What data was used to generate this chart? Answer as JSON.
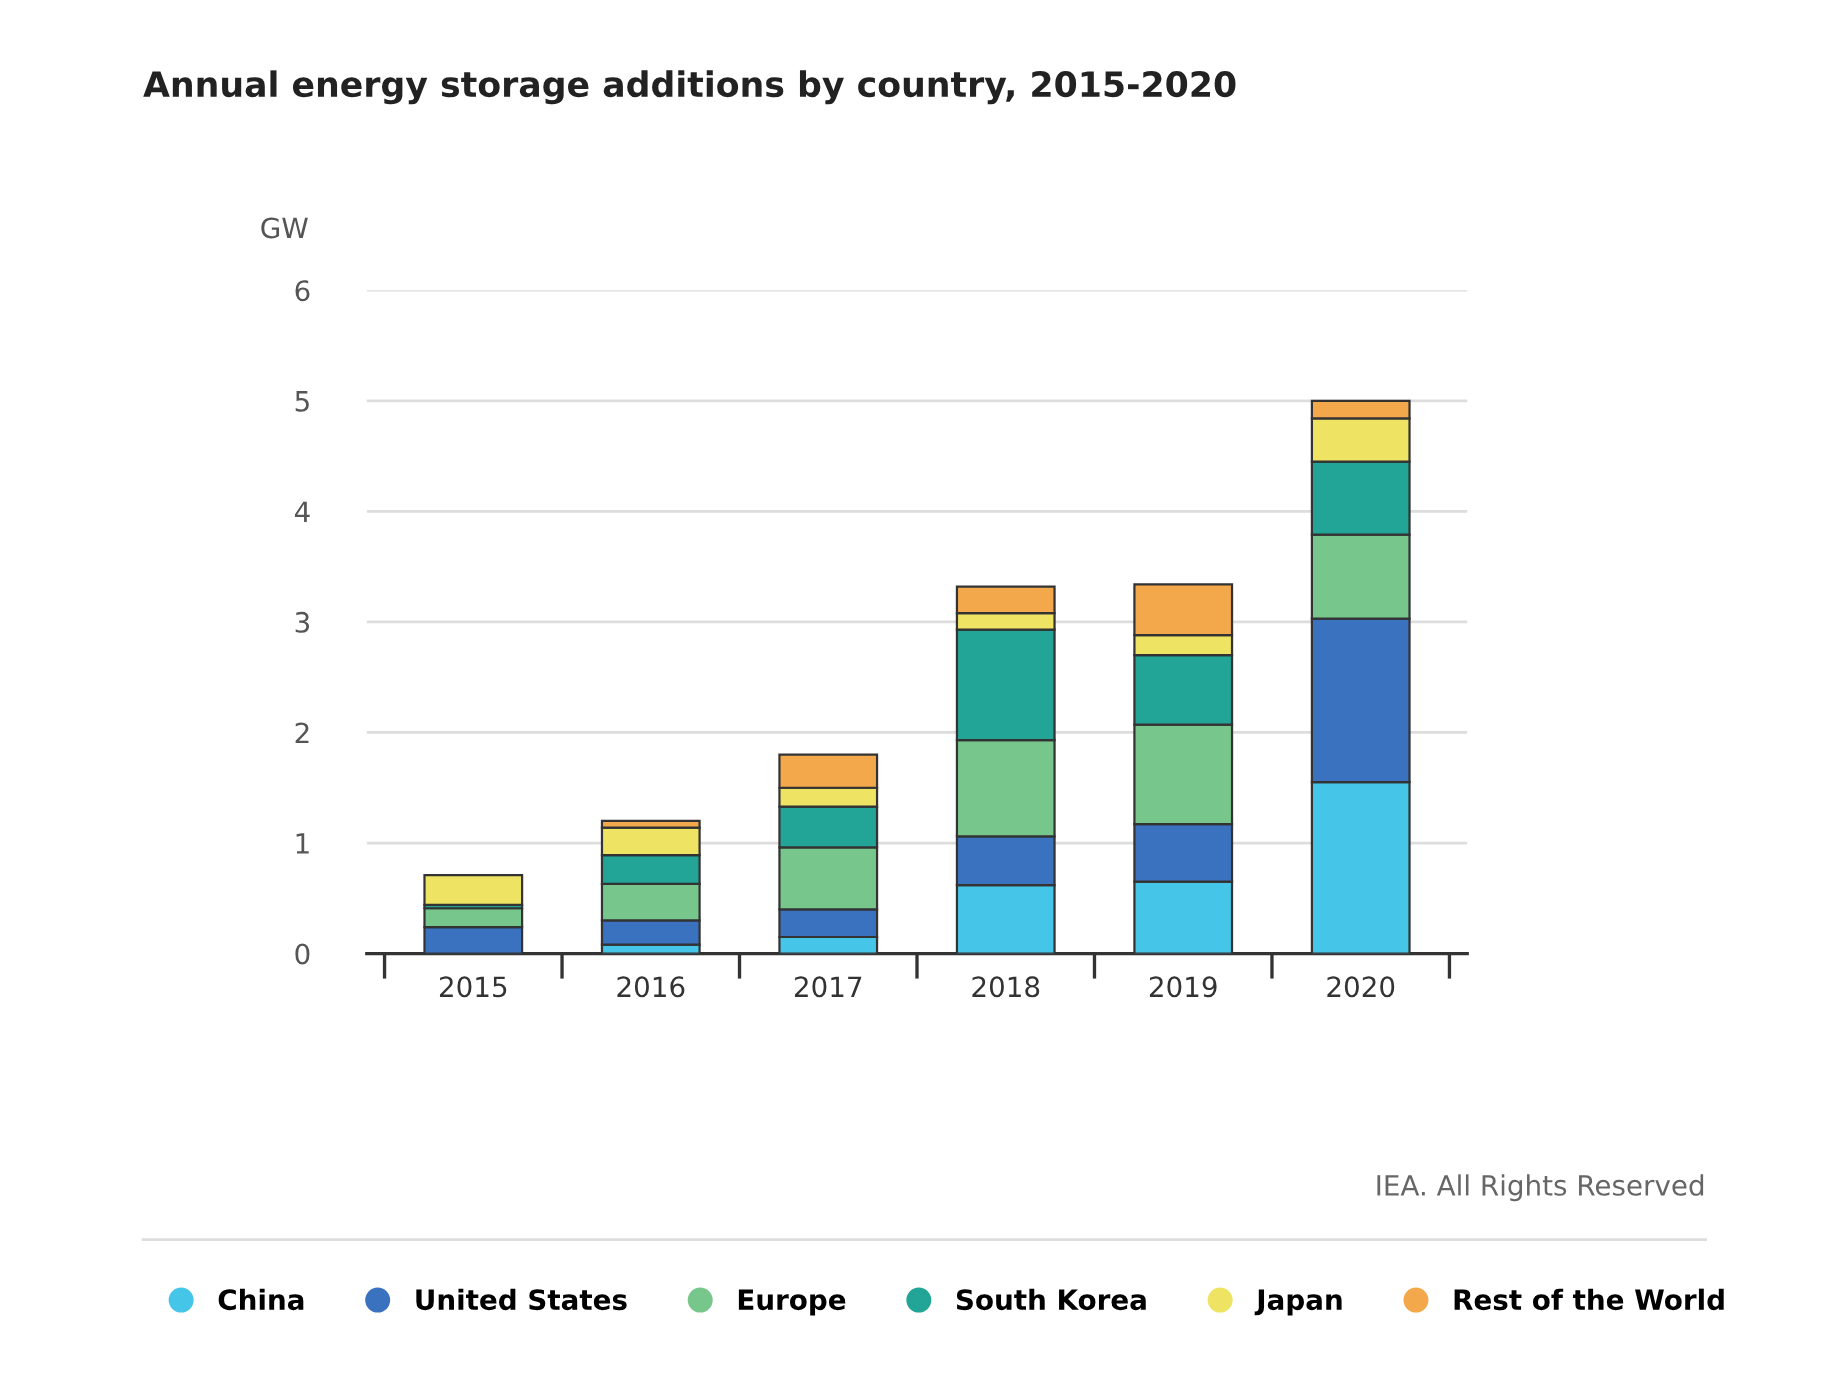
{
  "chart_data": {
    "type": "bar",
    "stacked": true,
    "title": "Annual energy storage additions by country, 2015-2020",
    "ylabel": "GW",
    "categories": [
      "2015",
      "2016",
      "2017",
      "2018",
      "2019",
      "2020"
    ],
    "series": [
      {
        "name": "China",
        "color": "#45c5e8",
        "values": [
          null,
          0.08,
          0.15,
          0.62,
          0.65,
          1.55
        ]
      },
      {
        "name": "United States",
        "color": "#3b72bf",
        "values": [
          0.24,
          0.22,
          0.25,
          0.44,
          0.52,
          1.48
        ]
      },
      {
        "name": "Europe",
        "color": "#77c68b",
        "values": [
          0.17,
          0.33,
          0.56,
          0.87,
          0.9,
          0.76
        ]
      },
      {
        "name": "South Korea",
        "color": "#22a496",
        "values": [
          0.03,
          0.26,
          0.37,
          1.0,
          0.63,
          0.66
        ]
      },
      {
        "name": "Japan",
        "color": "#efe363",
        "values": [
          0.27,
          0.25,
          0.17,
          0.15,
          0.18,
          0.39
        ]
      },
      {
        "name": "Rest of the World",
        "color": "#f4a84c",
        "values": [
          null,
          0.06,
          0.3,
          0.24,
          0.46,
          0.16
        ]
      }
    ],
    "ylim": [
      0,
      6
    ],
    "yticks": [
      0,
      1,
      2,
      3,
      4,
      5,
      6
    ],
    "grid": "y",
    "legend": "bottom",
    "marker": "circle",
    "annotations": [
      "IEA. All Rights Reserved"
    ]
  }
}
